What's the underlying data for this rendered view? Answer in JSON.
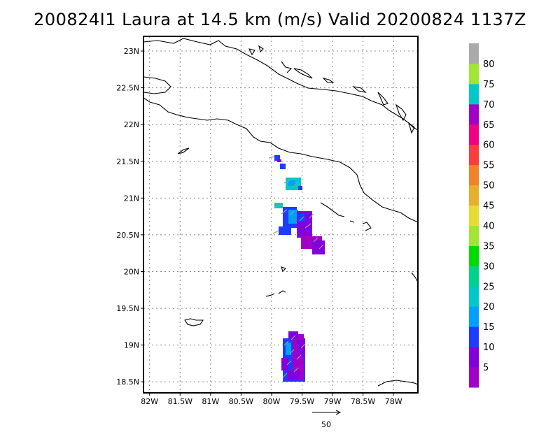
{
  "title": "200824I1 Laura at 14.5 km (m/s) Valid 20200824 1137Z",
  "map": {
    "lon_range": [
      -82.1,
      -77.6
    ],
    "lat_range": [
      18.35,
      23.2
    ],
    "grid": true,
    "lon_ticks": [
      {
        "v": -82.0,
        "label": "82W"
      },
      {
        "v": -81.5,
        "label": "81.5W"
      },
      {
        "v": -81.0,
        "label": "81W"
      },
      {
        "v": -80.5,
        "label": "80.5W"
      },
      {
        "v": -80.0,
        "label": "80W"
      },
      {
        "v": -79.5,
        "label": "79.5W"
      },
      {
        "v": -79.0,
        "label": "79W"
      },
      {
        "v": -78.5,
        "label": "78.5W"
      },
      {
        "v": -78.0,
        "label": "78W"
      }
    ],
    "lat_ticks": [
      {
        "v": 23.0,
        "label": "23N"
      },
      {
        "v": 22.5,
        "label": "22.5N"
      },
      {
        "v": 22.0,
        "label": "22N"
      },
      {
        "v": 21.5,
        "label": "21.5N"
      },
      {
        "v": 21.0,
        "label": "21N"
      },
      {
        "v": 20.5,
        "label": "20.5N"
      },
      {
        "v": 20.0,
        "label": "20N"
      },
      {
        "v": 19.5,
        "label": "19.5N"
      },
      {
        "v": 19.0,
        "label": "19N"
      },
      {
        "v": 18.5,
        "label": "18.5N"
      }
    ]
  },
  "colorbar": {
    "colors": [
      "#a000c8",
      "#8200dc",
      "#1e3cff",
      "#00a0ff",
      "#00c8c8",
      "#00d28c",
      "#00dc00",
      "#a0e632",
      "#e6dc32",
      "#e6af2d",
      "#f08228",
      "#fa3c3c",
      "#f00082",
      "#a000c8",
      "#00c8c8",
      "#a0e632",
      "#aaaaaa"
    ],
    "labels": [
      "5",
      "10",
      "15",
      "20",
      "25",
      "30",
      "35",
      "40",
      "45",
      "50",
      "55",
      "60",
      "65",
      "70",
      "75",
      "80"
    ]
  },
  "reference_vector": {
    "label": "50"
  },
  "chart_data": {
    "type": "heatmap",
    "title": "200824I1 Laura at 14.5 km (m/s) Valid 20200824 1137Z",
    "units": "m/s",
    "domain": {
      "lon": [
        -82.1,
        -77.6
      ],
      "lat": [
        18.35,
        23.2
      ]
    },
    "echo_regions": [
      {
        "lon": [
          -79.9,
          -79.8
        ],
        "lat": [
          21.5,
          21.62
        ],
        "speed_range": [
          5,
          15
        ]
      },
      {
        "lon": [
          -79.85,
          -79.6
        ],
        "lat": [
          21.12,
          21.28
        ],
        "speed_range": [
          15,
          20
        ]
      },
      {
        "lon": [
          -79.85,
          -79.45
        ],
        "lat": [
          20.6,
          20.9
        ],
        "speed_range": [
          5,
          15
        ]
      },
      {
        "lon": [
          -79.6,
          -79.25
        ],
        "lat": [
          20.25,
          20.6
        ],
        "speed_range": [
          5,
          10
        ]
      },
      {
        "lon": [
          -79.85,
          -79.5
        ],
        "lat": [
          18.5,
          19.2
        ],
        "speed_range": [
          5,
          15
        ]
      }
    ]
  }
}
